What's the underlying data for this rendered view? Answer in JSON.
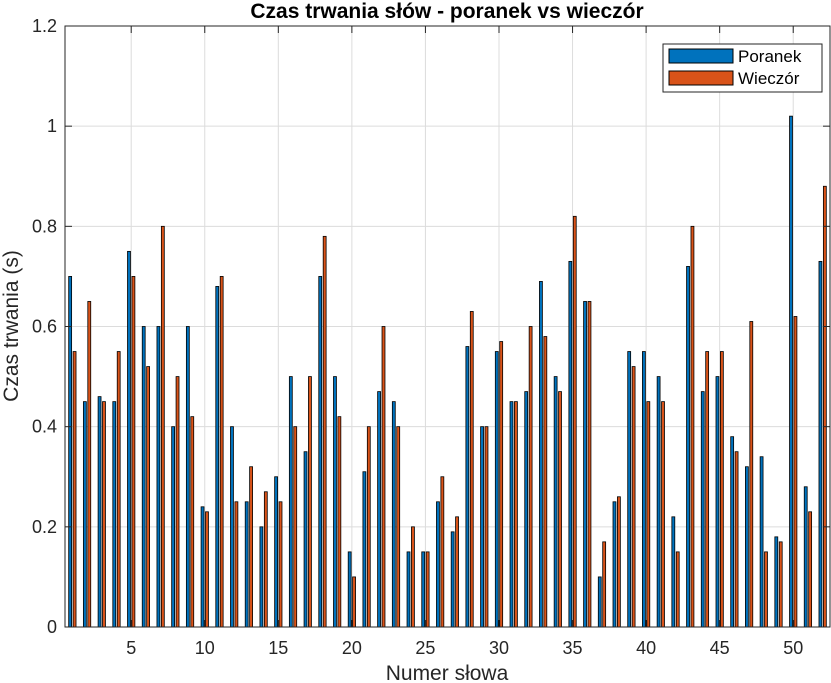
{
  "colors": {
    "morning": "#0072BD",
    "evening": "#D95319",
    "grid": "#dcdcdc",
    "axis": "#262626"
  },
  "chart_data": {
    "type": "bar",
    "title": "Czas trwania słów - poranek vs wieczór",
    "xlabel": "Numer słowa",
    "ylabel": "Czas trwania (s)",
    "xlim": [
      0.5,
      52.5
    ],
    "ylim": [
      0,
      1.2
    ],
    "xticks": [
      5,
      10,
      15,
      20,
      25,
      30,
      35,
      40,
      45,
      50
    ],
    "yticks": [
      0,
      0.2,
      0.4,
      0.6,
      0.8,
      1,
      1.2
    ],
    "ytick_labels": [
      "0",
      "0.2",
      "0.4",
      "0.6",
      "0.8",
      "1",
      "1.2"
    ],
    "grid": true,
    "legend_position": "top-right",
    "categories": [
      1,
      2,
      3,
      4,
      5,
      6,
      7,
      8,
      9,
      10,
      11,
      12,
      13,
      14,
      15,
      16,
      17,
      18,
      19,
      20,
      21,
      22,
      23,
      24,
      25,
      26,
      27,
      28,
      29,
      30,
      31,
      32,
      33,
      34,
      35,
      36,
      37,
      38,
      39,
      40,
      41,
      42,
      43,
      44,
      45,
      46,
      47,
      48,
      49,
      50,
      51,
      52
    ],
    "series": [
      {
        "name": "Poranek",
        "color": "#0072BD",
        "values": [
          0.7,
          0.45,
          0.46,
          0.45,
          0.75,
          0.6,
          0.6,
          0.4,
          0.6,
          0.24,
          0.68,
          0.4,
          0.25,
          0.2,
          0.3,
          0.5,
          0.35,
          0.7,
          0.5,
          0.15,
          0.31,
          0.47,
          0.45,
          0.15,
          0.15,
          0.25,
          0.19,
          0.56,
          0.4,
          0.55,
          0.45,
          0.47,
          0.69,
          0.5,
          0.73,
          0.65,
          0.1,
          0.25,
          0.55,
          0.55,
          0.5,
          0.22,
          0.72,
          0.47,
          0.5,
          0.38,
          0.32,
          0.34,
          0.18,
          1.02,
          0.28,
          0.73
        ]
      },
      {
        "name": "Wieczór",
        "color": "#D95319",
        "values": [
          0.55,
          0.65,
          0.45,
          0.55,
          0.7,
          0.52,
          0.8,
          0.5,
          0.42,
          0.23,
          0.7,
          0.25,
          0.32,
          0.27,
          0.25,
          0.4,
          0.5,
          0.78,
          0.42,
          0.1,
          0.4,
          0.6,
          0.4,
          0.2,
          0.15,
          0.3,
          0.22,
          0.63,
          0.4,
          0.57,
          0.45,
          0.6,
          0.58,
          0.47,
          0.82,
          0.65,
          0.17,
          0.26,
          0.52,
          0.45,
          0.45,
          0.15,
          0.8,
          0.55,
          0.55,
          0.35,
          0.61,
          0.15,
          0.17,
          0.62,
          0.23,
          0.88
        ]
      }
    ]
  }
}
